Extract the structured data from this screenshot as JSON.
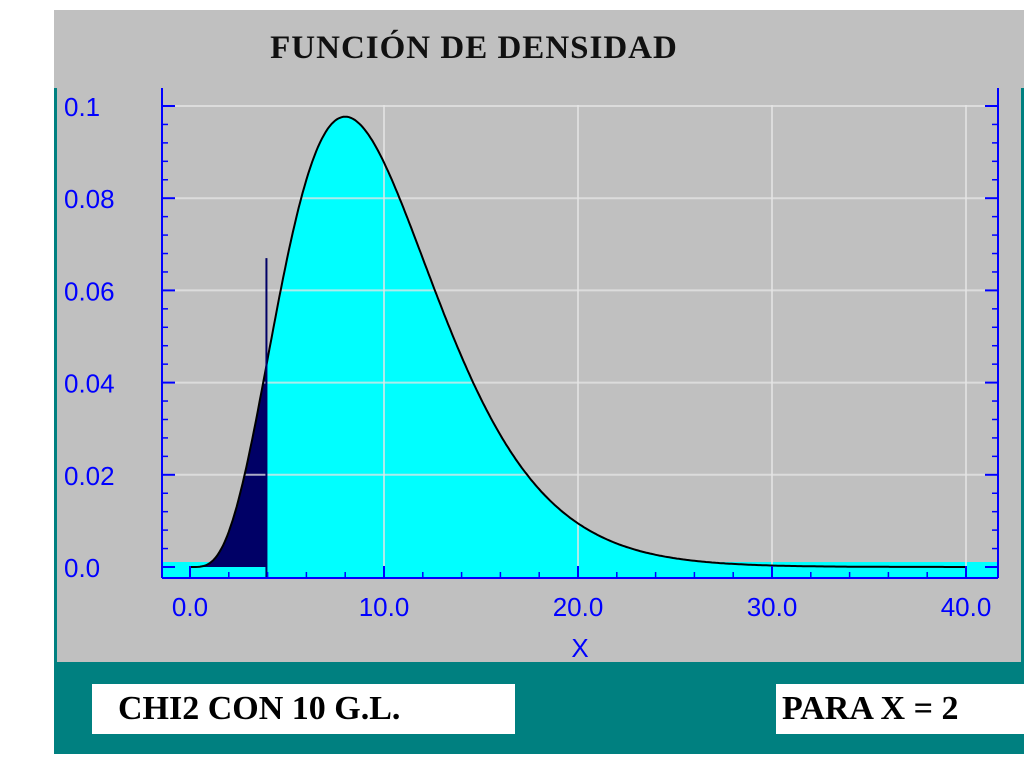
{
  "title": "FUNCIÓN DE DENSIDAD",
  "footer": {
    "distribution_label": "CHI2 CON 10 G.L.",
    "value_label": "PARA X = 2"
  },
  "colors": {
    "panel": "#c0c0c0",
    "teal": "#008080",
    "fill": "#00ffff",
    "shaded": "#000066",
    "axis": "#0000ff",
    "grid": "#e6e6e6",
    "curve": "#000000"
  },
  "chart_data": {
    "type": "area",
    "title": "FUNCIÓN DE DENSIDAD",
    "xlabel": "X",
    "ylabel": "",
    "distribution": "chi-square",
    "degrees_of_freedom": 10,
    "xlim": [
      0,
      40
    ],
    "ylim": [
      0,
      0.1
    ],
    "x_ticks": [
      0,
      10,
      20,
      30,
      40
    ],
    "x_tick_labels": [
      "0.0",
      "10.0",
      "20.0",
      "30.0",
      "40.0"
    ],
    "y_ticks": [
      0,
      0.02,
      0.04,
      0.06,
      0.08,
      0.1
    ],
    "y_tick_labels": [
      "0.0",
      "0.02",
      "0.04",
      "0.06",
      "0.08",
      "0.1"
    ],
    "shaded_region": [
      0,
      3.94
    ],
    "marker_x": 3.94,
    "marker_top_y": 0.067,
    "grid": true,
    "x": [
      0,
      1,
      2,
      3,
      4,
      5,
      6,
      7,
      8,
      9,
      10,
      11,
      12,
      13,
      14,
      15,
      16,
      17,
      18,
      19,
      20,
      22,
      24,
      26,
      28,
      30,
      32,
      34,
      36,
      38,
      40
    ],
    "y": [
      0,
      0.0008,
      0.0077,
      0.0235,
      0.0451,
      0.0668,
      0.084,
      0.0943,
      0.0977,
      0.0951,
      0.0877,
      0.0774,
      0.0661,
      0.0547,
      0.0439,
      0.0346,
      0.0266,
      0.02,
      0.0148,
      0.0108,
      0.0076,
      0.0037,
      0.0017,
      0.0008,
      0.0003,
      0.0001,
      0.0001,
      0.0,
      0.0,
      0.0,
      0.0
    ]
  }
}
